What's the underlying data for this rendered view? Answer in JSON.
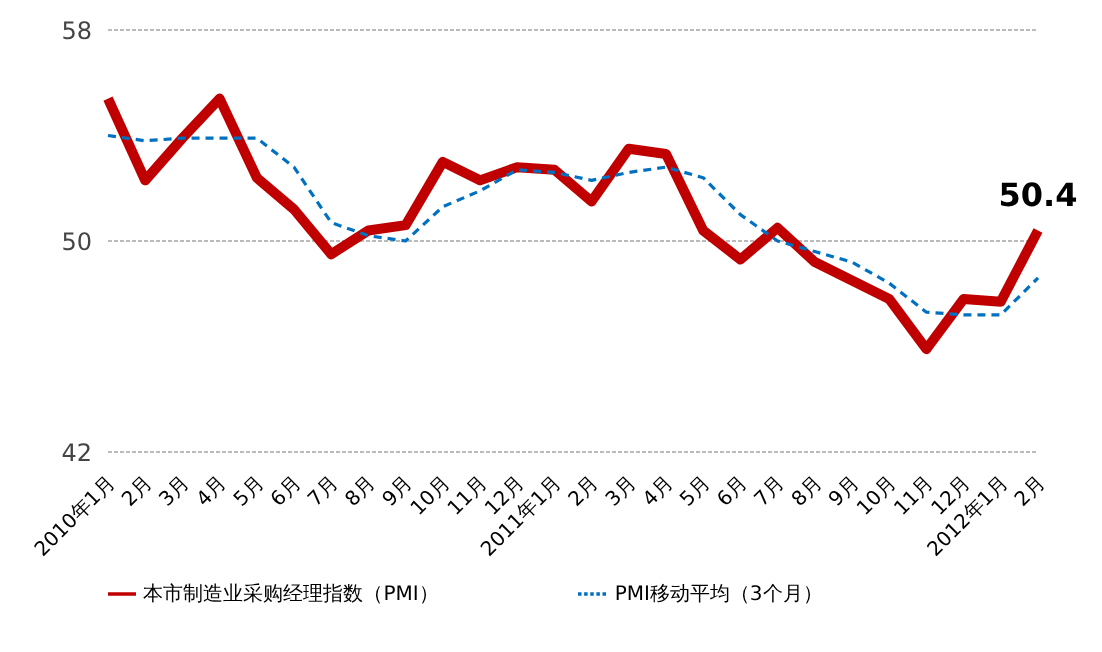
{
  "chart_data": {
    "type": "line",
    "categories": [
      "2010年1月",
      "2月",
      "3月",
      "4月",
      "5月",
      "6月",
      "7月",
      "8月",
      "9月",
      "10月",
      "11月",
      "12月",
      "2011年1月",
      "2月",
      "3月",
      "4月",
      "5月",
      "6月",
      "7月",
      "8月",
      "9月",
      "10月",
      "11月",
      "12月",
      "2012年1月",
      "2月"
    ],
    "series": [
      {
        "name": "本市制造业采购经理指数（PMI）",
        "color": "#c00000",
        "line_style": "solid",
        "values": [
          55.4,
          52.3,
          53.9,
          55.4,
          52.4,
          51.2,
          49.5,
          50.4,
          50.6,
          53.0,
          52.3,
          52.8,
          52.7,
          51.5,
          53.5,
          53.3,
          50.4,
          49.3,
          50.5,
          49.2,
          48.5,
          47.8,
          45.9,
          47.8,
          47.7,
          50.4
        ],
        "value_labels": [
          null,
          null,
          null,
          null,
          null,
          null,
          null,
          null,
          null,
          null,
          null,
          null,
          null,
          null,
          null,
          null,
          null,
          null,
          null,
          null,
          null,
          null,
          null,
          null,
          null,
          "50.4"
        ]
      },
      {
        "name": "PMI移动平均（3个月）",
        "color": "#0070c0",
        "line_style": "dashed",
        "values": [
          54.0,
          53.8,
          53.9,
          53.9,
          53.9,
          52.8,
          50.7,
          50.2,
          50.0,
          51.3,
          51.9,
          52.7,
          52.6,
          52.3,
          52.6,
          52.8,
          52.4,
          51.0,
          50.0,
          49.6,
          49.2,
          48.4,
          47.3,
          47.2,
          47.2,
          48.6
        ]
      }
    ],
    "ylim": [
      42,
      58
    ],
    "yticks": [
      42,
      50,
      58
    ],
    "grid": "y",
    "legend": "bottom",
    "marker": "none"
  }
}
